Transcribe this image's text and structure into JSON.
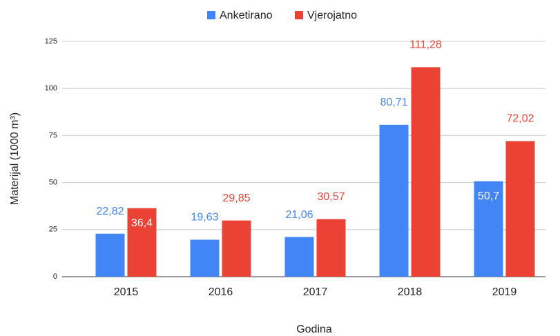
{
  "chart_data": {
    "type": "bar",
    "y_label": "Materijal (1000 m³)",
    "x_label": "Godina",
    "categories": [
      "2015",
      "2016",
      "2017",
      "2018",
      "2019"
    ],
    "series": [
      {
        "name": "Anketirano",
        "color": "#4285f4",
        "values": [
          22.82,
          19.63,
          21.06,
          80.71,
          50.7
        ],
        "value_labels": [
          "22,82",
          "19,63",
          "21,06",
          "80,71",
          "50,7"
        ]
      },
      {
        "name": "Vjerojatno",
        "color": "#ea4335",
        "values": [
          36.4,
          29.85,
          30.57,
          111.28,
          72.02
        ],
        "value_labels": [
          "36,4",
          "29,85",
          "30,57",
          "111,28",
          "72,02"
        ]
      }
    ],
    "ylim": [
      0,
      125
    ],
    "yticks": [
      0,
      25,
      50,
      75,
      100,
      125
    ],
    "grid": true,
    "legend": "top"
  }
}
